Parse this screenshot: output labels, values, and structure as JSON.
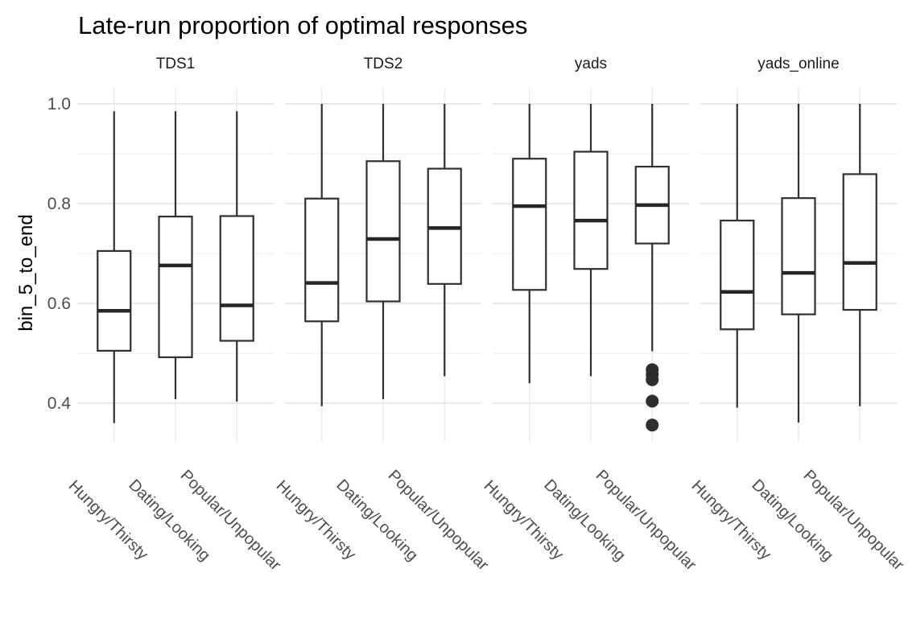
{
  "title": "Late-run proportion of optimal responses",
  "y_axis": {
    "label": "bin_5_to_end",
    "tick_labels": [
      "1.0",
      "0.8",
      "0.6",
      "0.4"
    ],
    "tick_values": [
      1.0,
      0.8,
      0.6,
      0.4
    ]
  },
  "colors": {
    "title_text": "#000000",
    "strip_text": "#1a1a1a",
    "tick_text": "#4d4d4d",
    "box_stroke": "#303030",
    "box_fill": "#ffffff",
    "median": "#262626",
    "outlier": "#2e2e2e",
    "grid_major": "#e6e6e6",
    "grid_minor": "#f2f2f2",
    "grid_vertical": "#ebebeb",
    "panel_bg": "#ffffff"
  },
  "chart_data": {
    "type": "boxplot",
    "title": "Late-run proportion of optimal responses",
    "xlabel": "",
    "ylabel": "bin_5_to_end",
    "ylim": [
      0.324,
      1.032
    ],
    "yticks_major": [
      0.4,
      0.6,
      0.8,
      1.0
    ],
    "yticks_minor": [
      0.5,
      0.7,
      0.9
    ],
    "grid": true,
    "legend": false,
    "categories": [
      "Hungry/Thirsty",
      "Dating/Looking",
      "Popular/Unpopular"
    ],
    "facets": [
      {
        "label": "TDS1",
        "boxes": [
          {
            "category": "Hungry/Thirsty",
            "whisker_low": 0.36,
            "q1": 0.505,
            "median": 0.585,
            "q3": 0.705,
            "whisker_high": 0.985,
            "outliers": []
          },
          {
            "category": "Dating/Looking",
            "whisker_low": 0.408,
            "q1": 0.492,
            "median": 0.676,
            "q3": 0.774,
            "whisker_high": 0.985,
            "outliers": []
          },
          {
            "category": "Popular/Unpopular",
            "whisker_low": 0.403,
            "q1": 0.525,
            "median": 0.596,
            "q3": 0.775,
            "whisker_high": 0.985,
            "outliers": []
          }
        ]
      },
      {
        "label": "TDS2",
        "boxes": [
          {
            "category": "Hungry/Thirsty",
            "whisker_low": 0.394,
            "q1": 0.564,
            "median": 0.641,
            "q3": 0.81,
            "whisker_high": 1.0,
            "outliers": []
          },
          {
            "category": "Dating/Looking",
            "whisker_low": 0.408,
            "q1": 0.604,
            "median": 0.729,
            "q3": 0.885,
            "whisker_high": 1.0,
            "outliers": []
          },
          {
            "category": "Popular/Unpopular",
            "whisker_low": 0.454,
            "q1": 0.639,
            "median": 0.751,
            "q3": 0.87,
            "whisker_high": 1.0,
            "outliers": []
          }
        ]
      },
      {
        "label": "yads",
        "boxes": [
          {
            "category": "Hungry/Thirsty",
            "whisker_low": 0.44,
            "q1": 0.627,
            "median": 0.795,
            "q3": 0.89,
            "whisker_high": 1.0,
            "outliers": []
          },
          {
            "category": "Dating/Looking",
            "whisker_low": 0.454,
            "q1": 0.669,
            "median": 0.766,
            "q3": 0.904,
            "whisker_high": 1.0,
            "outliers": []
          },
          {
            "category": "Popular/Unpopular",
            "whisker_low": 0.504,
            "q1": 0.72,
            "median": 0.797,
            "q3": 0.874,
            "whisker_high": 1.0,
            "outliers": [
              0.467,
              0.457,
              0.447,
              0.404,
              0.356
            ]
          }
        ]
      },
      {
        "label": "yads_online",
        "boxes": [
          {
            "category": "Hungry/Thirsty",
            "whisker_low": 0.391,
            "q1": 0.548,
            "median": 0.623,
            "q3": 0.766,
            "whisker_high": 1.0,
            "outliers": []
          },
          {
            "category": "Dating/Looking",
            "whisker_low": 0.361,
            "q1": 0.578,
            "median": 0.661,
            "q3": 0.811,
            "whisker_high": 1.0,
            "outliers": []
          },
          {
            "category": "Popular/Unpopular",
            "whisker_low": 0.394,
            "q1": 0.587,
            "median": 0.681,
            "q3": 0.859,
            "whisker_high": 1.0,
            "outliers": []
          }
        ]
      }
    ]
  }
}
